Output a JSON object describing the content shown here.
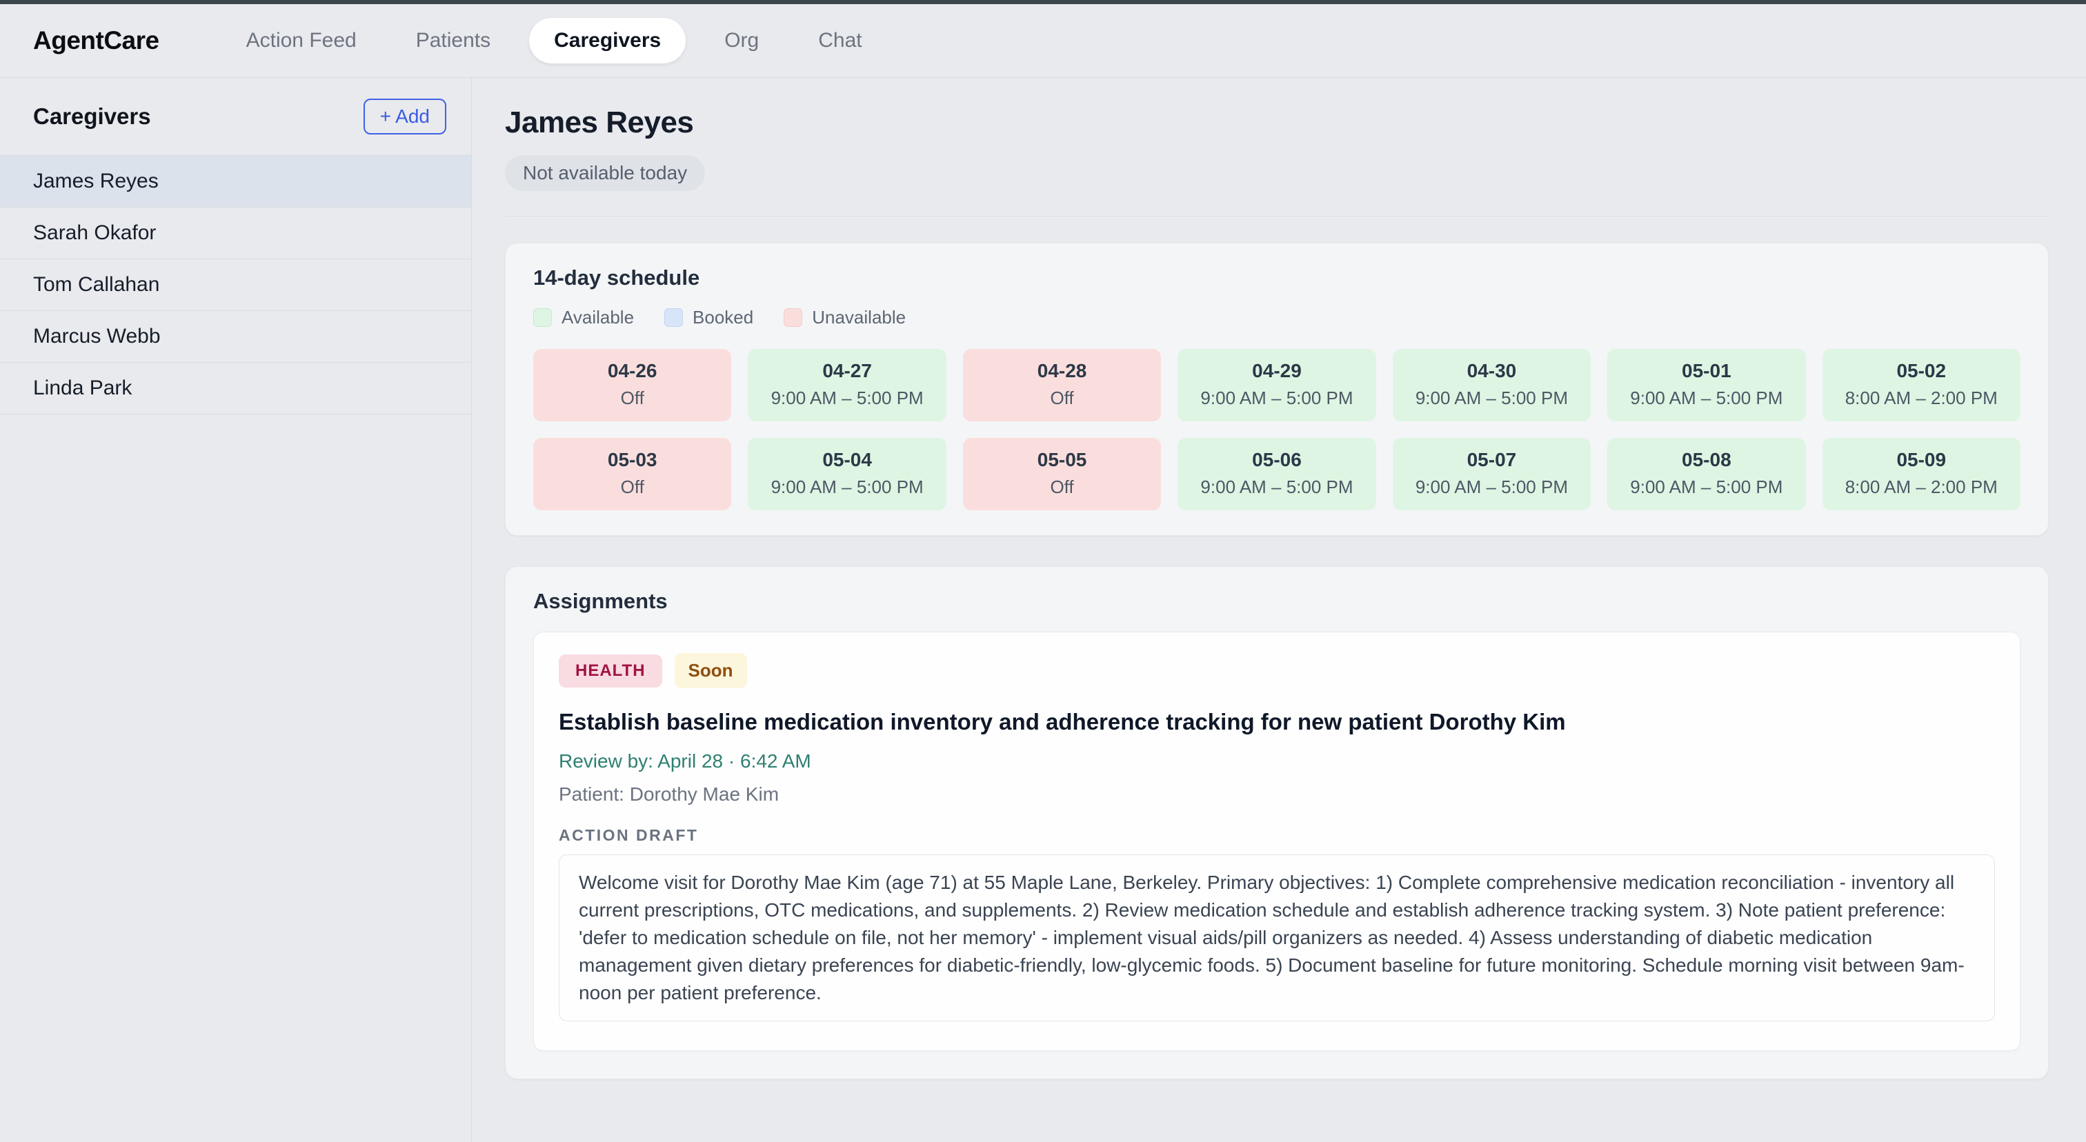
{
  "nav": {
    "brand": "AgentCare",
    "tabs": [
      {
        "label": "Action Feed",
        "active": false
      },
      {
        "label": "Patients",
        "active": false
      },
      {
        "label": "Caregivers",
        "active": true
      },
      {
        "label": "Org",
        "active": false
      },
      {
        "label": "Chat",
        "active": false
      }
    ]
  },
  "sidebar": {
    "title": "Caregivers",
    "add_button_label": "+ Add",
    "items": [
      {
        "name": "James Reyes",
        "selected": true
      },
      {
        "name": "Sarah Okafor",
        "selected": false
      },
      {
        "name": "Tom Callahan",
        "selected": false
      },
      {
        "name": "Marcus Webb",
        "selected": false
      },
      {
        "name": "Linda Park",
        "selected": false
      }
    ]
  },
  "profile": {
    "name": "James Reyes",
    "availability_badge": "Not available today"
  },
  "schedule": {
    "title": "14-day schedule",
    "legend": [
      {
        "label": "Available",
        "color": "#def5e3"
      },
      {
        "label": "Booked",
        "color": "#d8e4f8"
      },
      {
        "label": "Unavailable",
        "color": "#fadedd"
      }
    ],
    "days": [
      {
        "date": "04-26",
        "hours": "Off",
        "status": "unavailable"
      },
      {
        "date": "04-27",
        "hours": "9:00 AM – 5:00 PM",
        "status": "available"
      },
      {
        "date": "04-28",
        "hours": "Off",
        "status": "unavailable"
      },
      {
        "date": "04-29",
        "hours": "9:00 AM – 5:00 PM",
        "status": "available"
      },
      {
        "date": "04-30",
        "hours": "9:00 AM – 5:00 PM",
        "status": "available"
      },
      {
        "date": "05-01",
        "hours": "9:00 AM – 5:00 PM",
        "status": "available"
      },
      {
        "date": "05-02",
        "hours": "8:00 AM – 2:00 PM",
        "status": "available"
      },
      {
        "date": "05-03",
        "hours": "Off",
        "status": "unavailable"
      },
      {
        "date": "05-04",
        "hours": "9:00 AM – 5:00 PM",
        "status": "available"
      },
      {
        "date": "05-05",
        "hours": "Off",
        "status": "unavailable"
      },
      {
        "date": "05-06",
        "hours": "9:00 AM – 5:00 PM",
        "status": "available"
      },
      {
        "date": "05-07",
        "hours": "9:00 AM – 5:00 PM",
        "status": "available"
      },
      {
        "date": "05-08",
        "hours": "9:00 AM – 5:00 PM",
        "status": "available"
      },
      {
        "date": "05-09",
        "hours": "8:00 AM – 2:00 PM",
        "status": "available"
      }
    ]
  },
  "assignments": {
    "title": "Assignments",
    "card": {
      "category_badge": "HEALTH",
      "urgency_badge": "Soon",
      "title": "Establish baseline medication inventory and adherence tracking for new patient Dorothy Kim",
      "review_by": "Review by: April 28 · 6:42 AM",
      "patient": "Patient: Dorothy Mae Kim",
      "draft_label": "ACTION DRAFT",
      "draft_text": "Welcome visit for Dorothy Mae Kim (age 71) at 55 Maple Lane, Berkeley. Primary objectives: 1) Complete comprehensive medication reconciliation - inventory all current prescriptions, OTC medications, and supplements. 2) Review medication schedule and establish adherence tracking system. 3) Note patient preference: 'defer to medication schedule on file, not her memory' - implement visual aids/pill organizers as needed. 4) Assess understanding of diabetic medication management given dietary preferences for diabetic-friendly, low-glycemic foods. 5) Document baseline for future monitoring. Schedule morning visit between 9am-noon per patient preference."
    }
  },
  "colors": {
    "accent_blue": "#3f62e5",
    "teal": "#2f8071",
    "available_green": "#def5e3",
    "unavailable_pink": "#fadedd",
    "booked_blue": "#d8e4f8",
    "health_badge_bg": "#f9dbe2",
    "health_badge_text": "#a01343",
    "soon_badge_bg": "#fcf6dd",
    "soon_badge_text": "#8f4e0f"
  }
}
